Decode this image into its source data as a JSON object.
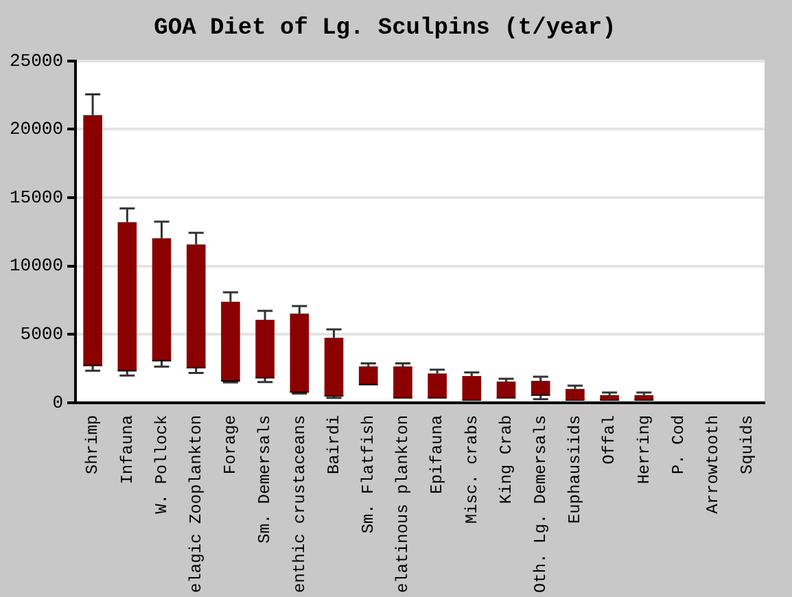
{
  "chart_data": {
    "type": "box",
    "title": "GOA Diet of Lg. Sculpins (t/year)",
    "categories": [
      "Shrimp",
      "Infauna",
      "W. Pollock",
      "elagic Zooplankton",
      "Forage",
      "Sm. Demersals",
      "enthic crustaceans",
      "Bairdi",
      "Sm. Flatfish",
      "elatinous plankton",
      "Epifauna",
      "Misc. crabs",
      "King Crab",
      "Oth. Lg. Demersals",
      "Euphausiids",
      "Offal",
      "Herring",
      "P. Cod",
      "Arrowtooth",
      "Squids"
    ],
    "series": [
      {
        "color": "#8b0000",
        "boxes": [
          {
            "low": 2330,
            "q1": 2720,
            "median": 2720,
            "q3": 21040,
            "high": 22550
          },
          {
            "low": 1980,
            "q1": 2330,
            "median": 2330,
            "q3": 13200,
            "high": 14210
          },
          {
            "low": 2640,
            "q1": 3070,
            "median": 3070,
            "q3": 12030,
            "high": 13240
          },
          {
            "low": 2170,
            "q1": 2560,
            "median": 2560,
            "q3": 11570,
            "high": 12420
          },
          {
            "low": 1480,
            "q1": 1590,
            "median": 1590,
            "q3": 7380,
            "high": 8070
          },
          {
            "low": 1510,
            "q1": 1820,
            "median": 1820,
            "q3": 6060,
            "high": 6720
          },
          {
            "low": 660,
            "q1": 780,
            "median": 780,
            "q3": 6520,
            "high": 7070
          },
          {
            "low": 350,
            "q1": 500,
            "median": 500,
            "q3": 4740,
            "high": 5360
          },
          {
            "low": 1320,
            "q1": 1320,
            "median": 1320,
            "q3": 2650,
            "high": 2870
          },
          {
            "low": 350,
            "q1": 350,
            "median": 350,
            "q3": 2650,
            "high": 2870
          },
          {
            "low": 350,
            "q1": 350,
            "median": 350,
            "q3": 2140,
            "high": 2410
          },
          {
            "low": 190,
            "q1": 190,
            "median": 190,
            "q3": 1940,
            "high": 2210
          },
          {
            "low": 350,
            "q1": 350,
            "median": 350,
            "q3": 1550,
            "high": 1750
          },
          {
            "low": 250,
            "q1": 550,
            "median": 550,
            "q3": 1590,
            "high": 1900
          },
          {
            "low": 190,
            "q1": 190,
            "median": 190,
            "q3": 1000,
            "high": 1240
          },
          {
            "low": 190,
            "q1": 190,
            "median": 190,
            "q3": 550,
            "high": 740
          },
          {
            "low": 190,
            "q1": 190,
            "median": 190,
            "q3": 550,
            "high": 740
          },
          null,
          null,
          null
        ]
      }
    ],
    "ylim": [
      0,
      25000
    ],
    "yticks": [
      0,
      5000,
      10000,
      15000,
      20000,
      25000
    ],
    "grid": "y",
    "legend": false
  }
}
